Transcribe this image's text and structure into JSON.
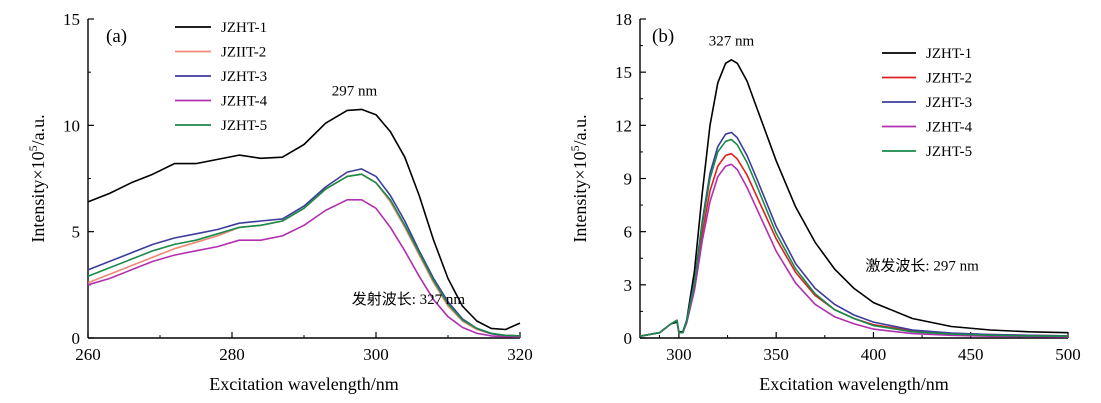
{
  "chart_data": [
    {
      "type": "line",
      "panel_label": "(a)",
      "xlabel": "Excitation  wavelength/nm",
      "ylabel": "Intensity×10",
      "ylabel_sup": "5",
      "ylabel_unit": "/a.u.",
      "xlim": [
        260,
        320
      ],
      "ylim": [
        0,
        15
      ],
      "xticks": [
        260,
        280,
        300,
        320
      ],
      "yticks": [
        0,
        5,
        10,
        15
      ],
      "grid": false,
      "legend_position": "top-left",
      "annotations": [
        {
          "text": "297 nm",
          "x": 297,
          "y": 11.4
        },
        {
          "text": "发射波长: 327 nm",
          "x": 304.5,
          "y": 1.6
        }
      ],
      "x": [
        260,
        263,
        266,
        269,
        272,
        275,
        278,
        281,
        284,
        287,
        290,
        293,
        296,
        298,
        300,
        302,
        304,
        306,
        308,
        310,
        312,
        314,
        316,
        318,
        320
      ],
      "series": [
        {
          "name": "JZHT-1",
          "color": "#000000",
          "values": [
            6.4,
            6.8,
            7.3,
            7.7,
            8.2,
            8.2,
            8.4,
            8.6,
            8.45,
            8.5,
            9.1,
            10.1,
            10.7,
            10.75,
            10.5,
            9.7,
            8.5,
            6.7,
            4.6,
            2.8,
            1.5,
            0.8,
            0.45,
            0.4,
            0.7
          ]
        },
        {
          "name": "JZIIT-2",
          "color": "#f08878",
          "values": [
            2.6,
            3.0,
            3.4,
            3.8,
            4.2,
            4.5,
            4.8,
            5.2,
            5.3,
            5.5,
            6.1,
            7.0,
            7.6,
            7.7,
            7.3,
            6.4,
            5.2,
            3.9,
            2.6,
            1.5,
            0.8,
            0.4,
            0.2,
            0.12,
            0.1
          ]
        },
        {
          "name": "JZHT-3",
          "color": "#3c3c9c",
          "values": [
            3.2,
            3.6,
            4.0,
            4.4,
            4.7,
            4.9,
            5.1,
            5.4,
            5.5,
            5.6,
            6.2,
            7.1,
            7.8,
            7.95,
            7.6,
            6.7,
            5.5,
            4.1,
            2.8,
            1.7,
            0.9,
            0.45,
            0.2,
            0.12,
            0.1
          ]
        },
        {
          "name": "JZHT-4",
          "color": "#b030b0",
          "values": [
            2.5,
            2.8,
            3.2,
            3.6,
            3.9,
            4.1,
            4.3,
            4.6,
            4.6,
            4.8,
            5.3,
            6.0,
            6.5,
            6.5,
            6.1,
            5.2,
            4.1,
            2.9,
            1.8,
            1.0,
            0.5,
            0.22,
            0.1,
            0.06,
            0.05
          ]
        },
        {
          "name": "JZHT-5",
          "color": "#1a8a4a",
          "values": [
            2.9,
            3.3,
            3.7,
            4.1,
            4.4,
            4.6,
            4.9,
            5.2,
            5.3,
            5.5,
            6.1,
            7.0,
            7.6,
            7.7,
            7.3,
            6.5,
            5.3,
            4.0,
            2.7,
            1.6,
            0.85,
            0.45,
            0.22,
            0.12,
            0.1
          ]
        }
      ]
    },
    {
      "type": "line",
      "panel_label": "(b)",
      "xlabel": "Excitation  wavelength/nm",
      "ylabel": "Intensity×10",
      "ylabel_sup": "5",
      "ylabel_unit": "/a.u.",
      "xlim": [
        280,
        500
      ],
      "ylim": [
        0,
        18
      ],
      "xticks": [
        300,
        350,
        400,
        450,
        500
      ],
      "yticks": [
        0,
        3,
        6,
        9,
        12,
        15,
        18
      ],
      "grid": false,
      "legend_position": "top-right",
      "annotations": [
        {
          "text": "327 nm",
          "x": 327,
          "y": 16.5
        },
        {
          "text": "激发波长: 297 nm",
          "x": 425,
          "y": 3.8
        }
      ],
      "x": [
        280,
        290,
        296,
        299,
        300,
        302,
        304,
        308,
        312,
        316,
        320,
        324,
        327,
        330,
        335,
        340,
        350,
        360,
        370,
        380,
        390,
        400,
        420,
        440,
        460,
        480,
        500
      ],
      "series": [
        {
          "name": "JZHT-1",
          "color": "#000000",
          "values": [
            0.1,
            0.3,
            0.8,
            0.9,
            0.35,
            0.35,
            1.0,
            3.8,
            8.2,
            12.0,
            14.4,
            15.5,
            15.7,
            15.5,
            14.5,
            13.0,
            10.0,
            7.4,
            5.4,
            3.9,
            2.8,
            2.0,
            1.1,
            0.65,
            0.45,
            0.35,
            0.3
          ]
        },
        {
          "name": "JZHT-2",
          "color": "#e02020",
          "values": [
            0.1,
            0.3,
            0.8,
            1.0,
            0.3,
            0.3,
            0.9,
            2.9,
            5.9,
            8.3,
            9.7,
            10.3,
            10.4,
            10.1,
            9.2,
            8.0,
            5.6,
            3.7,
            2.4,
            1.6,
            1.1,
            0.75,
            0.4,
            0.25,
            0.2,
            0.15,
            0.12
          ]
        },
        {
          "name": "JZHT-3",
          "color": "#3c3c9c",
          "values": [
            0.1,
            0.3,
            0.8,
            1.0,
            0.3,
            0.3,
            1.0,
            3.2,
            6.6,
            9.3,
            10.8,
            11.5,
            11.6,
            11.3,
            10.3,
            9.0,
            6.3,
            4.2,
            2.8,
            1.9,
            1.3,
            0.9,
            0.45,
            0.28,
            0.2,
            0.15,
            0.12
          ]
        },
        {
          "name": "JZHT-4",
          "color": "#b030b0",
          "values": [
            0.1,
            0.3,
            0.8,
            1.0,
            0.3,
            0.3,
            0.85,
            2.7,
            5.5,
            7.7,
            9.1,
            9.7,
            9.8,
            9.5,
            8.5,
            7.3,
            4.9,
            3.1,
            1.9,
            1.2,
            0.8,
            0.5,
            0.25,
            0.15,
            0.1,
            0.08,
            0.06
          ]
        },
        {
          "name": "JZHT-5",
          "color": "#1a8a4a",
          "values": [
            0.1,
            0.3,
            0.8,
            1.0,
            0.3,
            0.3,
            0.95,
            3.1,
            6.4,
            9.0,
            10.5,
            11.1,
            11.2,
            10.9,
            9.9,
            8.6,
            5.9,
            3.9,
            2.5,
            1.6,
            1.1,
            0.7,
            0.35,
            0.22,
            0.16,
            0.12,
            0.1
          ]
        }
      ]
    }
  ]
}
